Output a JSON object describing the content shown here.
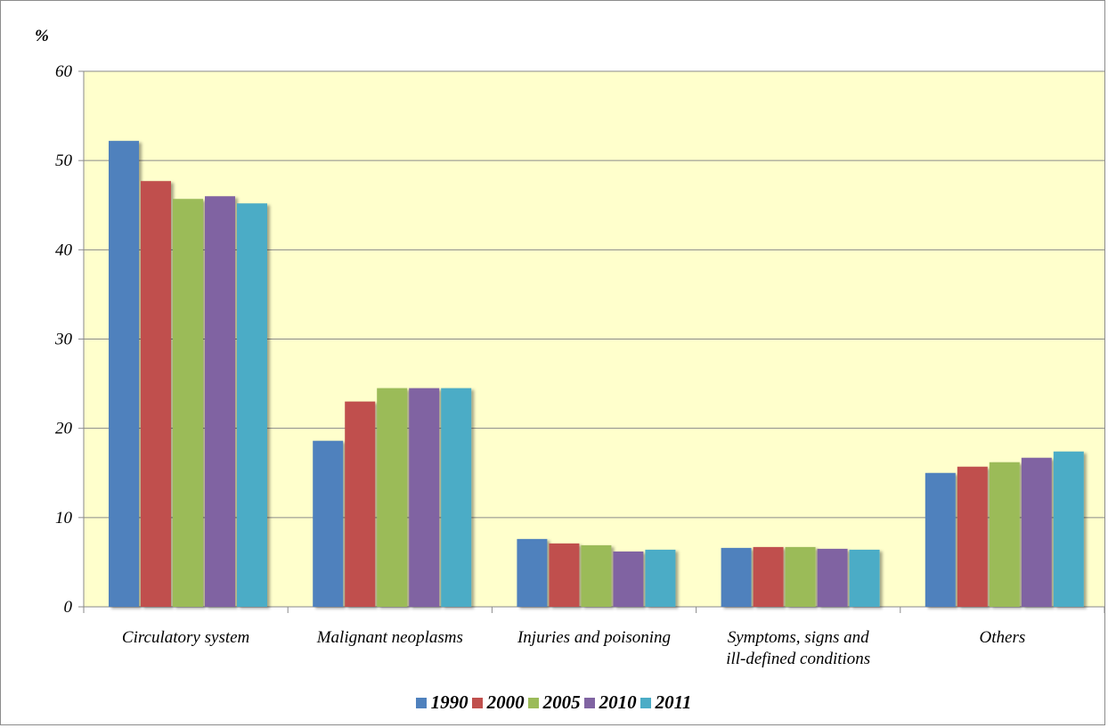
{
  "chart_data": {
    "type": "bar",
    "title": "",
    "xlabel": "",
    "ylabel": "%",
    "ylim": [
      0,
      60
    ],
    "yticks": [
      0,
      10,
      20,
      30,
      40,
      50,
      60
    ],
    "grid": true,
    "legend_position": "bottom",
    "plot_background": "#FFFFCC",
    "categories": [
      [
        "Circulatory system"
      ],
      [
        "Malignant neoplasms"
      ],
      [
        "Injuries and poisoning"
      ],
      [
        "Symptoms, signs and",
        "ill-defined conditions"
      ],
      [
        "Others"
      ]
    ],
    "series": [
      {
        "name": "1990",
        "color": "#4F81BD",
        "values": [
          52.2,
          18.6,
          7.6,
          6.6,
          15.0
        ]
      },
      {
        "name": "2000",
        "color": "#C0504D",
        "values": [
          47.7,
          23.0,
          7.1,
          6.7,
          15.7
        ]
      },
      {
        "name": "2005",
        "color": "#9BBB59",
        "values": [
          45.7,
          24.5,
          6.9,
          6.7,
          16.2
        ]
      },
      {
        "name": "2010",
        "color": "#8064A2",
        "values": [
          46.0,
          24.5,
          6.2,
          6.5,
          16.7
        ]
      },
      {
        "name": "2011",
        "color": "#4BACC6",
        "values": [
          45.2,
          24.5,
          6.4,
          6.4,
          17.4
        ]
      }
    ]
  }
}
